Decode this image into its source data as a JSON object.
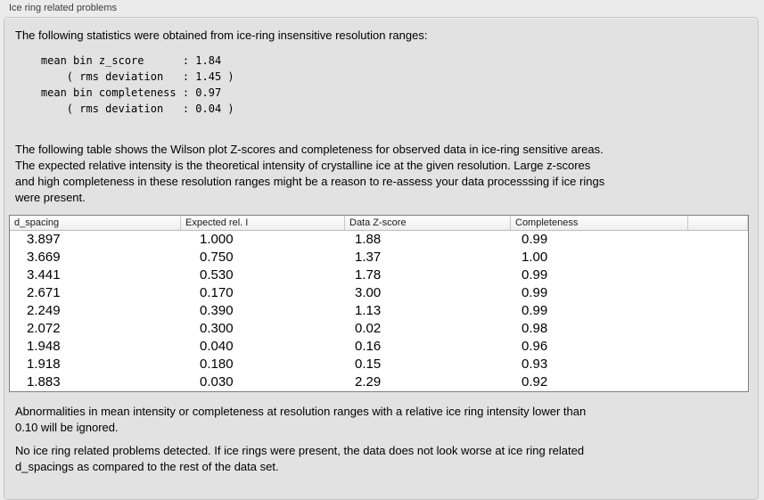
{
  "panel_title": "Ice ring related problems",
  "intro": "The following statistics were obtained from ice-ring insensitive resolution ranges:",
  "stats_text": "    mean bin z_score      : 1.84\n        ( rms deviation   : 1.45 )\n    mean bin completeness : 0.97\n        ( rms deviation   : 0.04 )",
  "stats": {
    "mean_bin_z_score": "1.84",
    "z_score_rms_deviation": "1.45",
    "mean_bin_completeness": "0.97",
    "completeness_rms_deviation": "0.04"
  },
  "description": {
    "lines": [
      "The following table shows the Wilson plot Z-scores and completeness for observed data in ice-ring sensitive areas.",
      "The expected relative intensity is the theoretical intensity of crystalline ice at the given resolution. Large z-scores",
      "and high completeness in these resolution ranges might be a reason to re-assess your data processsing if ice rings",
      "were present."
    ]
  },
  "table": {
    "columns": [
      "d_spacing",
      "Expected rel. I",
      "Data Z-score",
      "Completeness"
    ],
    "rows": [
      [
        "3.897",
        "1.000",
        "1.88",
        "0.99"
      ],
      [
        "3.669",
        "0.750",
        "1.37",
        "1.00"
      ],
      [
        "3.441",
        "0.530",
        "1.78",
        "0.99"
      ],
      [
        "2.671",
        "0.170",
        "3.00",
        "0.99"
      ],
      [
        "2.249",
        "0.390",
        "1.13",
        "0.99"
      ],
      [
        "2.072",
        "0.300",
        "0.02",
        "0.98"
      ],
      [
        "1.948",
        "0.040",
        "0.16",
        "0.96"
      ],
      [
        "1.918",
        "0.180",
        "0.15",
        "0.93"
      ],
      [
        "1.883",
        "0.030",
        "2.29",
        "0.92"
      ]
    ]
  },
  "ignore_note": {
    "lines": [
      "Abnormalities in mean intensity or completeness at resolution ranges with a relative ice ring intensity lower than",
      "0.10 will be ignored."
    ]
  },
  "conclusion": {
    "lines": [
      "No ice ring related problems detected. If ice rings were present, the data does not look worse at ice ring related",
      "d_spacings as compared to the rest of the data set."
    ]
  },
  "colors": {
    "page_background": "#ebebeb",
    "groupbox_background": "#e2e2e2",
    "groupbox_border": "#c2c2c2",
    "table_border": "#7f7f7f",
    "table_body_background": "#ffffff"
  }
}
